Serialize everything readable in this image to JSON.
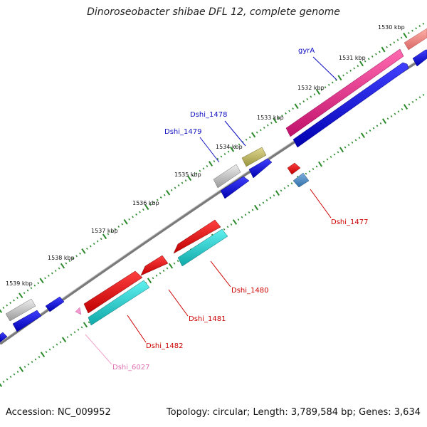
{
  "title": "Dinoroseobacter shibae DFL 12, complete genome",
  "footer": {
    "accession": "Accession: NC_009952",
    "topology": "Topology: circular; Length: 3,789,584 bp; Genes: 3,634"
  },
  "scale_labels": [
    "1530 kbp",
    "1531 kbp",
    "1532 kbp",
    "1533 kbp",
    "1534 kbp",
    "1535 kbp",
    "1536 kbp",
    "1537 kbp",
    "1538 kbp",
    "1539 kbp"
  ],
  "colors": {
    "backbone": "#7a7a7a",
    "tick_major": "#2a8a2a",
    "tick_minor": "#2a8a2a",
    "blue_label": "#1010c0",
    "red_label": "#cc0000",
    "pink_label": "#e070b0"
  },
  "gene_labels": [
    {
      "text": "gyrA",
      "color": "#1010c0"
    },
    {
      "text": "Dshi_1478",
      "color": "#1010c0"
    },
    {
      "text": "Dshi_1479",
      "color": "#1010c0"
    },
    {
      "text": "Dshi_1477",
      "color": "#cc0000"
    },
    {
      "text": "Dshi_1480",
      "color": "#cc0000"
    },
    {
      "text": "Dshi_1481",
      "color": "#cc0000"
    },
    {
      "text": "Dshi_1482",
      "color": "#cc0000"
    },
    {
      "text": "Dshi_6027",
      "color": "#e070b0"
    }
  ]
}
